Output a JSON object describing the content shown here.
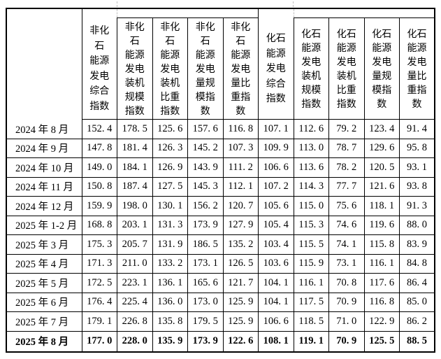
{
  "colors": {
    "border": "#000000",
    "text": "#000000",
    "background": "#ffffff",
    "dashed_marker": "#c0c0c0"
  },
  "header": {
    "corner": "",
    "strips": [
      {
        "text": ""
      },
      {
        "text": ""
      }
    ],
    "cells": [
      {
        "id": "nonfossil-composite",
        "text": "非化\n石\n能源\n发电\n综合\n指数"
      },
      {
        "id": "nonfossil-capacity-scale",
        "text": "非化\n石\n能源\n发电\n装机\n规模\n指数"
      },
      {
        "id": "nonfossil-capacity-share",
        "text": "非化\n石\n能源\n发电\n装机\n比重\n指数"
      },
      {
        "id": "nonfossil-output-scale",
        "text": "非化\n石\n能源\n发电\n量规\n模指\n数"
      },
      {
        "id": "nonfossil-output-share",
        "text": "非化\n石\n能源\n发电\n量比\n重指\n数"
      },
      {
        "id": "fossil-composite",
        "text": "化石\n能源\n发电\n综合\n指数"
      },
      {
        "id": "fossil-capacity-scale",
        "text": "化石\n能源\n发电\n装机\n规模\n指数"
      },
      {
        "id": "fossil-capacity-share",
        "text": "化石\n能源\n发电\n装机\n比重\n指数"
      },
      {
        "id": "fossil-output-scale",
        "text": "化石\n能源\n发电\n量规\n模指\n数"
      },
      {
        "id": "fossil-output-share",
        "text": "化石\n能源\n发电\n量比\n重指\n数"
      }
    ]
  },
  "rows": [
    {
      "label": "2024 年 8 月",
      "bold": false,
      "values": [
        "152. 4",
        "178. 5",
        "125. 6",
        "157. 6",
        "116. 8",
        "107. 1",
        "112. 6",
        "79. 2",
        "123. 4",
        "91. 4"
      ]
    },
    {
      "label": "2024 年 9 月",
      "bold": false,
      "values": [
        "147. 8",
        "181. 4",
        "126. 3",
        "145. 2",
        "107. 3",
        "109. 9",
        "113. 0",
        "78. 7",
        "129. 6",
        "95. 8"
      ]
    },
    {
      "label": "2024 年 10 月",
      "bold": false,
      "values": [
        "149. 0",
        "184. 1",
        "126. 9",
        "143. 9",
        "111. 2",
        "106. 6",
        "113. 6",
        "78. 2",
        "120. 5",
        "93. 1"
      ]
    },
    {
      "label": "2024 年 11 月",
      "bold": false,
      "values": [
        "150. 8",
        "187. 4",
        "127. 5",
        "145. 3",
        "112. 1",
        "107. 2",
        "114. 3",
        "77. 7",
        "121. 6",
        "93. 8"
      ]
    },
    {
      "label": "2024 年 12 月",
      "bold": false,
      "values": [
        "159. 9",
        "198. 0",
        "130. 1",
        "156. 2",
        "120. 7",
        "105. 6",
        "115. 0",
        "75. 6",
        "118. 1",
        "91. 3"
      ]
    },
    {
      "label": "2025 年 1-2 月",
      "bold": false,
      "values": [
        "168. 8",
        "203. 1",
        "131. 3",
        "173. 9",
        "127. 9",
        "105. 4",
        "115. 3",
        "74. 6",
        "119. 6",
        "88. 0"
      ]
    },
    {
      "label": "2025 年 3 月",
      "bold": false,
      "values": [
        "175. 3",
        "205. 7",
        "131. 9",
        "186. 5",
        "135. 2",
        "103. 4",
        "115. 5",
        "74. 1",
        "115. 8",
        "83. 9"
      ]
    },
    {
      "label": "2025 年 4 月",
      "bold": false,
      "values": [
        "171. 3",
        "211. 0",
        "133. 2",
        "173. 1",
        "126. 5",
        "103. 6",
        "115. 9",
        "73. 1",
        "116. 1",
        "84. 8"
      ]
    },
    {
      "label": "2025 年 5 月",
      "bold": false,
      "values": [
        "172. 5",
        "223. 1",
        "136. 1",
        "165. 6",
        "121. 7",
        "104. 1",
        "116. 1",
        "70. 8",
        "117. 6",
        "86. 4"
      ]
    },
    {
      "label": "2025 年 6 月",
      "bold": false,
      "values": [
        "176. 4",
        "225. 4",
        "136. 0",
        "173. 0",
        "125. 9",
        "104. 1",
        "117. 5",
        "70. 9",
        "116. 8",
        "85. 0"
      ]
    },
    {
      "label": "2025 年 7 月",
      "bold": false,
      "values": [
        "179. 1",
        "226. 8",
        "135. 8",
        "179. 5",
        "125. 9",
        "106. 6",
        "118. 5",
        "71. 0",
        "122. 9",
        "86. 2"
      ]
    },
    {
      "label": "2025 年 8 月",
      "bold": true,
      "values": [
        "177. 0",
        "228. 0",
        "135. 9",
        "173. 9",
        "122. 6",
        "108. 1",
        "119. 1",
        "70. 9",
        "125. 5",
        "88. 5"
      ]
    }
  ]
}
